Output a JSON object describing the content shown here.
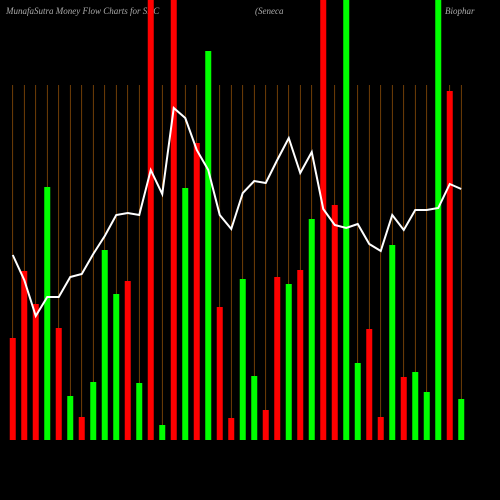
{
  "chart_data": {
    "type": "bar",
    "title": "MunafaSutra  Money Flow  Charts for SNC",
    "subtitle": "(Seneca",
    "title_end": "Biophar",
    "categories": [
      null,
      null,
      null,
      null,
      null,
      null,
      null,
      null,
      null,
      null,
      null,
      null,
      null,
      null,
      null,
      null,
      null,
      null,
      null,
      null,
      null,
      null,
      null,
      null,
      null,
      null,
      null,
      null,
      null,
      null,
      null,
      null,
      null,
      null,
      null,
      null,
      null,
      null,
      null,
      null
    ],
    "values": [
      102,
      169,
      136,
      253,
      112,
      44,
      23,
      58,
      190,
      146,
      159,
      57,
      440,
      15,
      440,
      252,
      297,
      389,
      133,
      22,
      161,
      64,
      30,
      163,
      156,
      170,
      221,
      440,
      235,
      440,
      77,
      111,
      23,
      195,
      63,
      68,
      48,
      440,
      349,
      41
    ],
    "colors": [
      "#ff0000",
      "#ff0000",
      "#ff0000",
      "#00ff00",
      "#ff0000",
      "#00ff00",
      "#ff0000",
      "#00ff00",
      "#00ff00",
      "#00ff00",
      "#ff0000",
      "#00ff00",
      "#ff0000",
      "#00ff00",
      "#ff0000",
      "#00ff00",
      "#ff0000",
      "#00ff00",
      "#ff0000",
      "#ff0000",
      "#00ff00",
      "#00ff00",
      "#ff0000",
      "#ff0000",
      "#00ff00",
      "#ff0000",
      "#00ff00",
      "#ff0000",
      "#ff0000",
      "#00ff00",
      "#00ff00",
      "#ff0000",
      "#ff0000",
      "#00ff00",
      "#ff0000",
      "#00ff00",
      "#00ff00",
      "#00ff00",
      "#ff0000",
      "#00ff00"
    ],
    "line": {
      "color": "#ffffff",
      "values": [
        185,
        160,
        124,
        143,
        143,
        163,
        166,
        186,
        204,
        225,
        227,
        225,
        270,
        246,
        332,
        322,
        290,
        270,
        225,
        211,
        247,
        259,
        257,
        280,
        302,
        267,
        288,
        231,
        215,
        212,
        216,
        196,
        189,
        225,
        210,
        230,
        230,
        232,
        256,
        251
      ]
    },
    "ylim": [
      0,
      440
    ],
    "grid_color": "#b8650a"
  }
}
